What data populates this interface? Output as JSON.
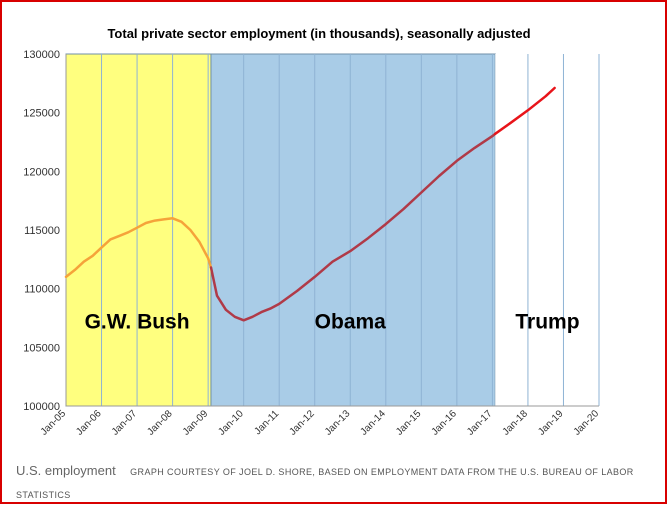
{
  "chart_data": {
    "type": "line",
    "title": "Total private sector employment (in thousands),  seasonally  adjusted",
    "xlabel": "",
    "ylabel": "",
    "ylim": [
      100000,
      130000
    ],
    "yticks": [
      100000,
      105000,
      110000,
      115000,
      120000,
      125000,
      130000
    ],
    "ytick_labels": [
      "100000",
      "105000",
      "110000",
      "115000",
      "120000",
      "125000",
      "130000"
    ],
    "xlim": [
      2005,
      2020
    ],
    "xticks": [
      2005,
      2006,
      2007,
      2008,
      2009,
      2010,
      2011,
      2012,
      2013,
      2014,
      2015,
      2016,
      2017,
      2018,
      2019,
      2020
    ],
    "xtick_labels": [
      "Jan-05",
      "Jan-06",
      "Jan-07",
      "Jan-08",
      "Jan-09",
      "Jan-10",
      "Jan-11",
      "Jan-12",
      "Jan-13",
      "Jan-14",
      "Jan-15",
      "Jan-16",
      "Jan-17",
      "Jan-18",
      "Jan-19",
      "Jan-20"
    ],
    "grid": "vertical",
    "regions": [
      {
        "name": "G.W. Bush",
        "start": 2005,
        "end": 2009.08,
        "color": "#ffff7f"
      },
      {
        "name": "Obama",
        "start": 2009.08,
        "end": 2017.08,
        "color": "#a9cce7"
      },
      {
        "name": "Trump",
        "start": 2017.08,
        "end": 2020,
        "color": "#ffffff"
      }
    ],
    "series": [
      {
        "name": "G.W. Bush",
        "color": "#f5a33a",
        "x": [
          2005.0,
          2005.25,
          2005.5,
          2005.75,
          2006.0,
          2006.25,
          2006.5,
          2006.75,
          2007.0,
          2007.25,
          2007.5,
          2007.75,
          2008.0,
          2008.25,
          2008.5,
          2008.75,
          2009.0,
          2009.08
        ],
        "y": [
          111000,
          111600,
          112300,
          112800,
          113500,
          114200,
          114500,
          114800,
          115200,
          115600,
          115800,
          115900,
          116000,
          115700,
          115000,
          114000,
          112600,
          111800
        ]
      },
      {
        "name": "Obama",
        "color": "#b03a48",
        "x": [
          2009.08,
          2009.25,
          2009.5,
          2009.75,
          2010.0,
          2010.25,
          2010.5,
          2010.75,
          2011.0,
          2011.5,
          2012.0,
          2012.5,
          2013.0,
          2013.5,
          2014.0,
          2014.5,
          2015.0,
          2015.5,
          2016.0,
          2016.5,
          2017.0,
          2017.08
        ],
        "y": [
          111800,
          109400,
          108200,
          107600,
          107300,
          107600,
          108000,
          108300,
          108700,
          109800,
          111000,
          112300,
          113200,
          114300,
          115500,
          116800,
          118200,
          119600,
          120900,
          122000,
          123000,
          123200
        ]
      },
      {
        "name": "Trump",
        "color": "#e8141a",
        "x": [
          2017.08,
          2017.5,
          2018.0,
          2018.5,
          2018.75
        ],
        "y": [
          123200,
          124100,
          125200,
          126400,
          127100
        ]
      }
    ],
    "annotations": [
      {
        "text": "G.W. Bush",
        "x": 2007.0,
        "y": 107300
      },
      {
        "text": "Obama",
        "x": 2013.0,
        "y": 107300
      },
      {
        "text": "Trump",
        "x": 2018.55,
        "y": 107300
      }
    ]
  },
  "caption": {
    "label": "U.S. employment",
    "credit": "GRAPH COURTESY OF JOEL D. SHORE, BASED ON EMPLOYMENT DATA FROM THE U.S. BUREAU OF LABOR STATISTICS"
  }
}
